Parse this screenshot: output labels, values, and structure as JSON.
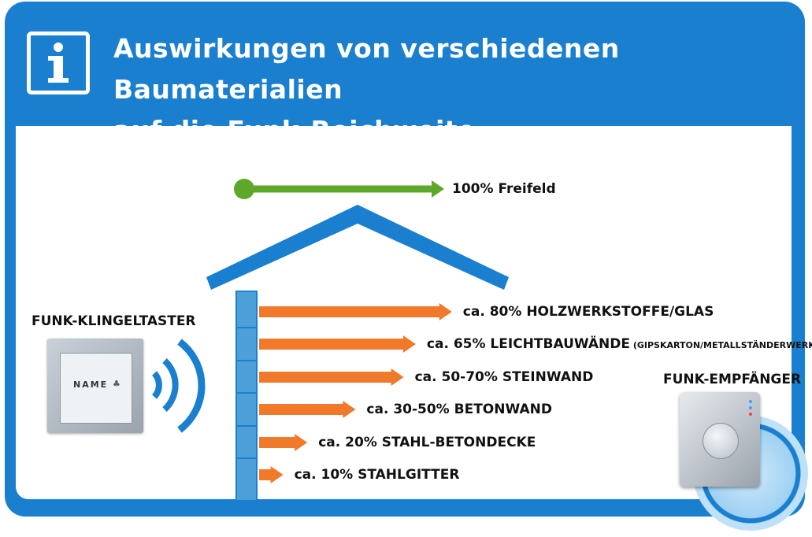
{
  "header": {
    "title_line1": "Auswirkungen von verschiedenen Baumaterialien",
    "title_line2": "auf die Funk-Reichweite",
    "icon": "info-icon"
  },
  "sender_label": "FUNK-KLINGELTASTER",
  "sender_nameplate": "NAME",
  "receiver_label": "FUNK-EMPFÄNGER",
  "freefield": {
    "percent": 100,
    "label": "100% Freifeld"
  },
  "materials": [
    {
      "percent": 80,
      "label": "ca. 80% HOLZWERKSTOFFE/GLAS",
      "note": ""
    },
    {
      "percent": 65,
      "label": "ca. 65% LEICHTBAUWÄNDE",
      "note": "(GIPSKARTON/METALLSTÄNDERWERK)"
    },
    {
      "percent": 60,
      "label": "ca. 50-70% STEINWAND",
      "note": ""
    },
    {
      "percent": 40,
      "label": "ca. 30-50% BETONWAND",
      "note": ""
    },
    {
      "percent": 20,
      "label": "ca. 20% STAHL-BETONDECKE",
      "note": ""
    },
    {
      "percent": 10,
      "label": "ca. 10% STAHLGITTER",
      "note": ""
    }
  ],
  "colors": {
    "blue": "#1a7fcf",
    "wall_blue": "#4d9fd8",
    "green": "#5da82a",
    "orange": "#f07a2a"
  }
}
